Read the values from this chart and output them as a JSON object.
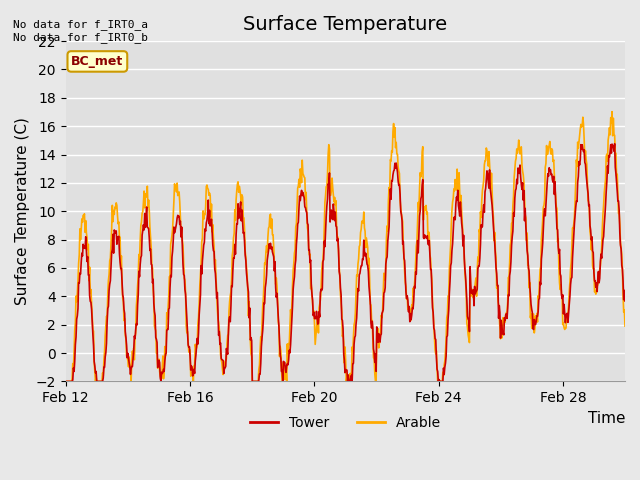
{
  "title": "Surface Temperature",
  "ylabel": "Surface Temperature (C)",
  "xlabel": "Time",
  "ylim": [
    -2,
    22
  ],
  "yticks": [
    -2,
    0,
    2,
    4,
    6,
    8,
    10,
    12,
    14,
    16,
    18,
    20,
    22
  ],
  "xtick_labels": [
    "Feb 12",
    "Feb 16",
    "Feb 20",
    "Feb 24",
    "Feb 28"
  ],
  "xtick_positions": [
    0,
    4,
    8,
    12,
    16
  ],
  "annotation_text": "No data for f_IRT0_a\nNo data for f_IRT0_b",
  "bc_met_label": "BC_met",
  "legend_entries": [
    "Tower",
    "Arable"
  ],
  "tower_color": "#cc0000",
  "arable_color": "#ffaa00",
  "bc_met_bg": "#ffffcc",
  "bc_met_border": "#cc9900",
  "background_color": "#e8e8e8",
  "plot_bg_color": "#e0e0e0",
  "grid_color": "#ffffff",
  "title_fontsize": 14,
  "axis_label_fontsize": 11,
  "tick_fontsize": 10,
  "line_width": 1.2,
  "num_points": 432,
  "days": 18,
  "tower_seed": 42,
  "arable_seed": 43
}
